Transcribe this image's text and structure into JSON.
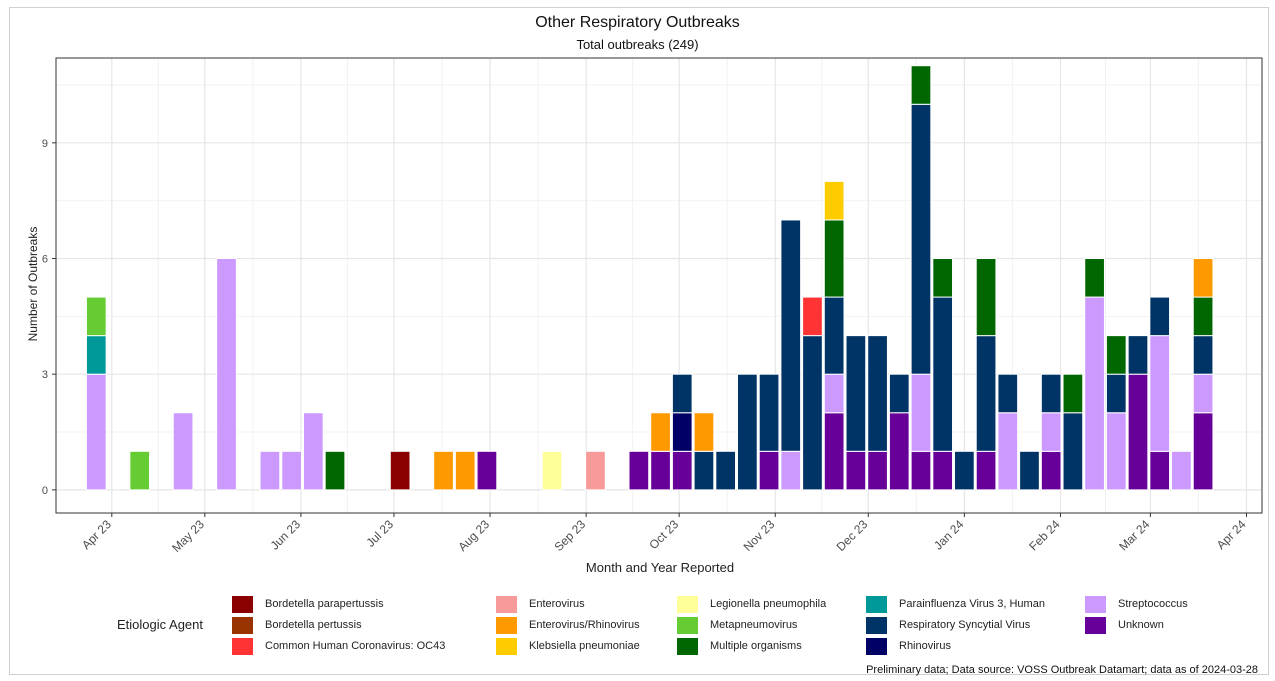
{
  "title": "Other Respiratory Outbreaks",
  "subtitle": "Total outbreaks (249)",
  "footer": "Preliminary data; Data source: VOSS Outbreak Datamart; data as of 2024-03-28",
  "chart_data": {
    "type": "bar",
    "stacked": true,
    "title": "Other Respiratory Outbreaks",
    "subtitle": "Total outbreaks (249)",
    "xlabel": "Month and Year Reported",
    "ylabel": "Number of Outbreaks",
    "ylim": [
      -0.6,
      11.2
    ],
    "yticks": [
      0,
      3,
      6,
      9
    ],
    "xlim": [
      "2023-03-14",
      "2024-04-06"
    ],
    "xticks": [
      {
        "date": "2023-04-01",
        "label": "Apr 23"
      },
      {
        "date": "2023-05-01",
        "label": "May 23"
      },
      {
        "date": "2023-06-01",
        "label": "Jun 23"
      },
      {
        "date": "2023-07-01",
        "label": "Jul 23"
      },
      {
        "date": "2023-08-01",
        "label": "Aug 23"
      },
      {
        "date": "2023-09-01",
        "label": "Sep 23"
      },
      {
        "date": "2023-10-01",
        "label": "Oct 23"
      },
      {
        "date": "2023-11-01",
        "label": "Nov 23"
      },
      {
        "date": "2023-12-01",
        "label": "Dec 23"
      },
      {
        "date": "2024-01-01",
        "label": "Jan 24"
      },
      {
        "date": "2024-02-01",
        "label": "Feb 24"
      },
      {
        "date": "2024-03-01",
        "label": "Mar 24"
      },
      {
        "date": "2024-04-01",
        "label": "Apr 24"
      }
    ],
    "grid": true,
    "legend_title": "Etiologic Agent",
    "legend_position": "bottom",
    "legend": [
      {
        "name": "Bordetella parapertussis",
        "color": "#8B0000"
      },
      {
        "name": "Bordetella pertussis",
        "color": "#993300"
      },
      {
        "name": "Common Human Coronavirus: OC43",
        "color": "#FF3333"
      },
      {
        "name": "Enterovirus",
        "color": "#F99A9A"
      },
      {
        "name": "Enterovirus/Rhinovirus",
        "color": "#FF9900"
      },
      {
        "name": "Klebsiella pneumoniae",
        "color": "#FFCC00"
      },
      {
        "name": "Legionella pneumophila",
        "color": "#FFFF99"
      },
      {
        "name": "Metapneumovirus",
        "color": "#66CC33"
      },
      {
        "name": "Multiple organisms",
        "color": "#006600"
      },
      {
        "name": "Parainfluenza Virus 3, Human",
        "color": "#009999"
      },
      {
        "name": "Respiratory Syncytial Virus",
        "color": "#003366"
      },
      {
        "name": "Rhinovirus",
        "color": "#000066"
      },
      {
        "name": "Streptococcus",
        "color": "#CC99FF"
      },
      {
        "name": "Unknown",
        "color": "#660099"
      }
    ],
    "bars": [
      {
        "week": "2023-03-27",
        "stack": [
          [
            "Streptococcus",
            3
          ],
          [
            "Parainfluenza Virus 3, Human",
            1
          ],
          [
            "Metapneumovirus",
            1
          ]
        ]
      },
      {
        "week": "2023-04-10",
        "stack": [
          [
            "Metapneumovirus",
            1
          ]
        ]
      },
      {
        "week": "2023-04-24",
        "stack": [
          [
            "Streptococcus",
            2
          ]
        ]
      },
      {
        "week": "2023-05-08",
        "stack": [
          [
            "Streptococcus",
            6
          ]
        ]
      },
      {
        "week": "2023-05-22",
        "stack": [
          [
            "Streptococcus",
            1
          ]
        ]
      },
      {
        "week": "2023-05-29",
        "stack": [
          [
            "Streptococcus",
            1
          ]
        ]
      },
      {
        "week": "2023-06-05",
        "stack": [
          [
            "Streptococcus",
            2
          ]
        ]
      },
      {
        "week": "2023-06-12",
        "stack": [
          [
            "Multiple organisms",
            1
          ]
        ]
      },
      {
        "week": "2023-07-03",
        "stack": [
          [
            "Bordetella parapertussis",
            1
          ]
        ]
      },
      {
        "week": "2023-07-17",
        "stack": [
          [
            "Enterovirus/Rhinovirus",
            1
          ]
        ]
      },
      {
        "week": "2023-07-24",
        "stack": [
          [
            "Enterovirus/Rhinovirus",
            1
          ]
        ]
      },
      {
        "week": "2023-07-31",
        "stack": [
          [
            "Unknown",
            1
          ]
        ]
      },
      {
        "week": "2023-08-21",
        "stack": [
          [
            "Legionella pneumophila",
            1
          ]
        ]
      },
      {
        "week": "2023-09-04",
        "stack": [
          [
            "Enterovirus",
            1
          ]
        ]
      },
      {
        "week": "2023-09-18",
        "stack": [
          [
            "Unknown",
            1
          ]
        ]
      },
      {
        "week": "2023-09-25",
        "stack": [
          [
            "Unknown",
            1
          ],
          [
            "Enterovirus/Rhinovirus",
            1
          ]
        ]
      },
      {
        "week": "2023-10-02",
        "stack": [
          [
            "Unknown",
            1
          ],
          [
            "Rhinovirus",
            1
          ],
          [
            "Respiratory Syncytial Virus",
            1
          ]
        ]
      },
      {
        "week": "2023-10-09",
        "stack": [
          [
            "Respiratory Syncytial Virus",
            1
          ],
          [
            "Enterovirus/Rhinovirus",
            1
          ]
        ]
      },
      {
        "week": "2023-10-16",
        "stack": [
          [
            "Respiratory Syncytial Virus",
            1
          ]
        ]
      },
      {
        "week": "2023-10-23",
        "stack": [
          [
            "Respiratory Syncytial Virus",
            3
          ]
        ]
      },
      {
        "week": "2023-10-30",
        "stack": [
          [
            "Unknown",
            1
          ],
          [
            "Respiratory Syncytial Virus",
            2
          ]
        ]
      },
      {
        "week": "2023-11-06",
        "stack": [
          [
            "Streptococcus",
            1
          ],
          [
            "Respiratory Syncytial Virus",
            6
          ]
        ]
      },
      {
        "week": "2023-11-13",
        "stack": [
          [
            "Respiratory Syncytial Virus",
            4
          ],
          [
            "Common Human Coronavirus: OC43",
            1
          ]
        ]
      },
      {
        "week": "2023-11-20",
        "stack": [
          [
            "Unknown",
            2
          ],
          [
            "Streptococcus",
            1
          ],
          [
            "Respiratory Syncytial Virus",
            2
          ],
          [
            "Multiple organisms",
            2
          ],
          [
            "Klebsiella pneumoniae",
            1
          ]
        ]
      },
      {
        "week": "2023-11-27",
        "stack": [
          [
            "Unknown",
            1
          ],
          [
            "Respiratory Syncytial Virus",
            3
          ]
        ]
      },
      {
        "week": "2023-12-04",
        "stack": [
          [
            "Unknown",
            1
          ],
          [
            "Respiratory Syncytial Virus",
            3
          ]
        ]
      },
      {
        "week": "2023-12-11",
        "stack": [
          [
            "Unknown",
            2
          ],
          [
            "Respiratory Syncytial Virus",
            1
          ]
        ]
      },
      {
        "week": "2023-12-18",
        "stack": [
          [
            "Unknown",
            1
          ],
          [
            "Streptococcus",
            2
          ],
          [
            "Respiratory Syncytial Virus",
            7
          ],
          [
            "Multiple organisms",
            1
          ]
        ]
      },
      {
        "week": "2023-12-25",
        "stack": [
          [
            "Unknown",
            1
          ],
          [
            "Respiratory Syncytial Virus",
            4
          ],
          [
            "Multiple organisms",
            1
          ]
        ]
      },
      {
        "week": "2024-01-01",
        "stack": [
          [
            "Respiratory Syncytial Virus",
            1
          ]
        ]
      },
      {
        "week": "2024-01-08",
        "stack": [
          [
            "Unknown",
            1
          ],
          [
            "Respiratory Syncytial Virus",
            3
          ],
          [
            "Multiple organisms",
            2
          ]
        ]
      },
      {
        "week": "2024-01-15",
        "stack": [
          [
            "Streptococcus",
            2
          ],
          [
            "Respiratory Syncytial Virus",
            1
          ]
        ]
      },
      {
        "week": "2024-01-22",
        "stack": [
          [
            "Respiratory Syncytial Virus",
            1
          ]
        ]
      },
      {
        "week": "2024-01-29",
        "stack": [
          [
            "Unknown",
            1
          ],
          [
            "Streptococcus",
            1
          ],
          [
            "Respiratory Syncytial Virus",
            1
          ]
        ]
      },
      {
        "week": "2024-02-05",
        "stack": [
          [
            "Respiratory Syncytial Virus",
            2
          ],
          [
            "Multiple organisms",
            1
          ]
        ]
      },
      {
        "week": "2024-02-12",
        "stack": [
          [
            "Streptococcus",
            5
          ],
          [
            "Multiple organisms",
            1
          ]
        ]
      },
      {
        "week": "2024-02-19",
        "stack": [
          [
            "Streptococcus",
            2
          ],
          [
            "Respiratory Syncytial Virus",
            1
          ],
          [
            "Multiple organisms",
            1
          ]
        ]
      },
      {
        "week": "2024-02-26",
        "stack": [
          [
            "Unknown",
            3
          ],
          [
            "Respiratory Syncytial Virus",
            1
          ]
        ]
      },
      {
        "week": "2024-03-04",
        "stack": [
          [
            "Unknown",
            1
          ],
          [
            "Streptococcus",
            3
          ],
          [
            "Respiratory Syncytial Virus",
            1
          ]
        ]
      },
      {
        "week": "2024-03-11",
        "stack": [
          [
            "Streptococcus",
            1
          ]
        ]
      },
      {
        "week": "2024-03-18",
        "stack": [
          [
            "Unknown",
            2
          ],
          [
            "Streptococcus",
            1
          ],
          [
            "Respiratory Syncytial Virus",
            1
          ],
          [
            "Multiple organisms",
            1
          ],
          [
            "Enterovirus/Rhinovirus",
            1
          ]
        ]
      }
    ]
  }
}
